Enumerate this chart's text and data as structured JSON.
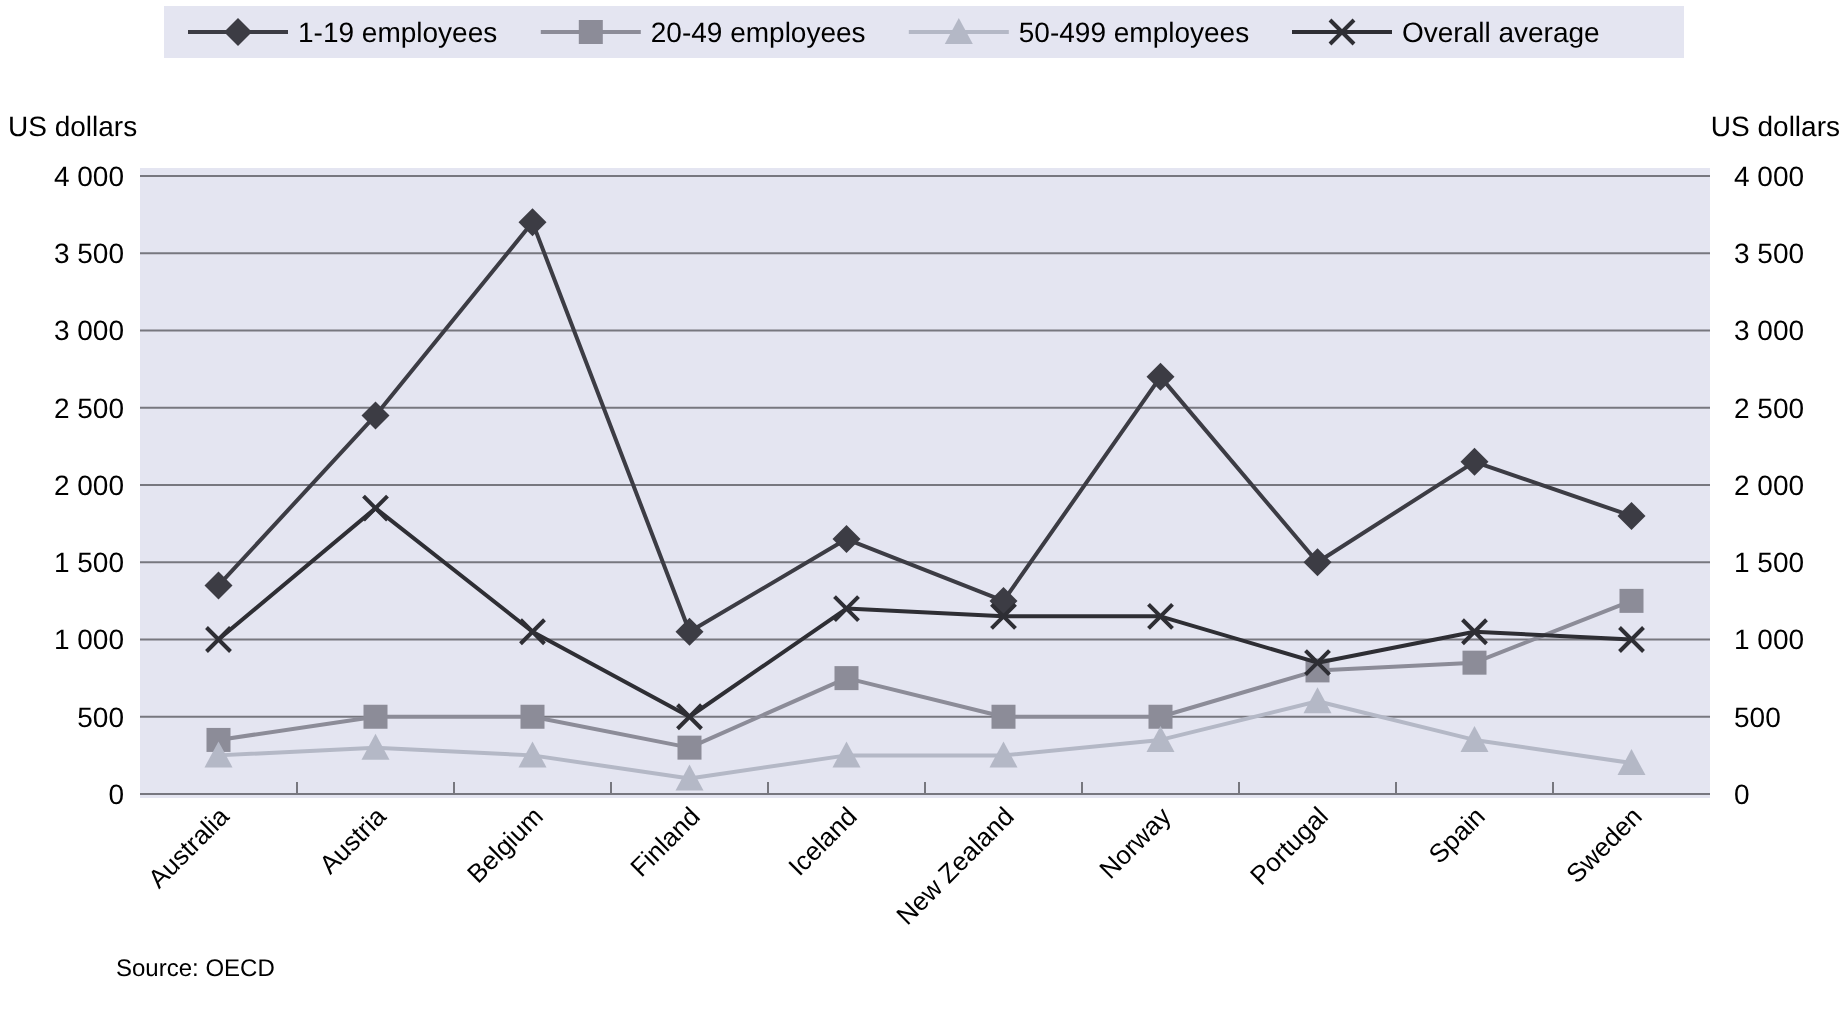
{
  "chart_data": {
    "type": "line",
    "ylabel": "US dollars",
    "y2label": "US dollars",
    "categories": [
      "Australia",
      "Austria",
      "Belgium",
      "Finland",
      "Iceland",
      "New Zealand",
      "Norway",
      "Portugal",
      "Spain",
      "Sweden"
    ],
    "series": [
      {
        "name": "1-19 employees",
        "color": "#3c3c44",
        "marker": "diamond",
        "values": [
          1350,
          2450,
          3700,
          1050,
          1650,
          1250,
          2700,
          1500,
          2150,
          1800
        ]
      },
      {
        "name": "20-49 employees",
        "color": "#8c8c98",
        "marker": "square",
        "values": [
          350,
          500,
          500,
          300,
          750,
          500,
          500,
          800,
          850,
          1250
        ]
      },
      {
        "name": "50-499 employees",
        "color": "#b4b8c6",
        "marker": "triangle",
        "values": [
          250,
          300,
          250,
          100,
          250,
          250,
          350,
          600,
          350,
          200
        ]
      },
      {
        "name": "Overall average",
        "color": "#2e2e34",
        "marker": "cross",
        "values": [
          1000,
          1850,
          1050,
          500,
          1200,
          1150,
          1150,
          850,
          1050,
          1000
        ]
      }
    ],
    "ylim": [
      0,
      4000
    ],
    "yticks": [
      0,
      500,
      {
        "value": 1000,
        "label": "1 000"
      },
      {
        "value": 1500,
        "label": "1 500"
      },
      {
        "value": 2000,
        "label": "2 000"
      },
      {
        "value": 2500,
        "label": "2 500"
      },
      {
        "value": 3000,
        "label": "3 000"
      },
      {
        "value": 3500,
        "label": "3 500"
      },
      {
        "value": 4000,
        "label": "4 000"
      }
    ],
    "y2lim": [
      0,
      4000
    ],
    "y2ticks": [
      0,
      500,
      {
        "value": 1000,
        "label": "1 000"
      },
      {
        "value": 1500,
        "label": "1 500"
      },
      {
        "value": 2000,
        "label": "2 000"
      },
      {
        "value": 2500,
        "label": "2 500"
      },
      {
        "value": 3000,
        "label": "3 000"
      },
      {
        "value": 3500,
        "label": "3 500"
      },
      {
        "value": 4000,
        "label": "4 000"
      }
    ],
    "grid": "y",
    "legend": "top",
    "line_style": "solid",
    "annotations": [
      "Source: OECD"
    ]
  }
}
